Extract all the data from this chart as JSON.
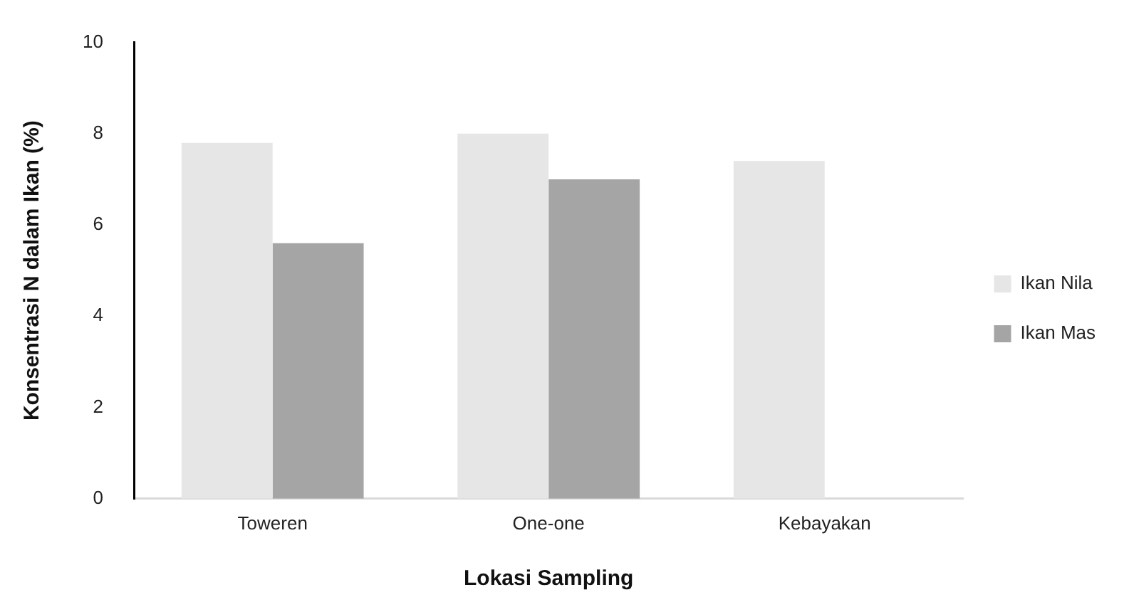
{
  "chart_data": {
    "type": "bar",
    "xlabel": "Lokasi Sampling",
    "ylabel": "Konsentrasi N dalam Ikan (%)",
    "categories": [
      "Toweren",
      "One-one",
      "Kebayakan"
    ],
    "series": [
      {
        "name": "Ikan Nila",
        "color": "#e6e6e6",
        "values": [
          7.8,
          8.0,
          7.4
        ]
      },
      {
        "name": "Ikan Mas",
        "color": "#a5a5a5",
        "values": [
          5.6,
          7.0,
          null
        ]
      }
    ],
    "ylim": [
      0,
      10
    ],
    "yticks": [
      0,
      2,
      4,
      6,
      8,
      10
    ],
    "grid": false,
    "legend": "right"
  }
}
